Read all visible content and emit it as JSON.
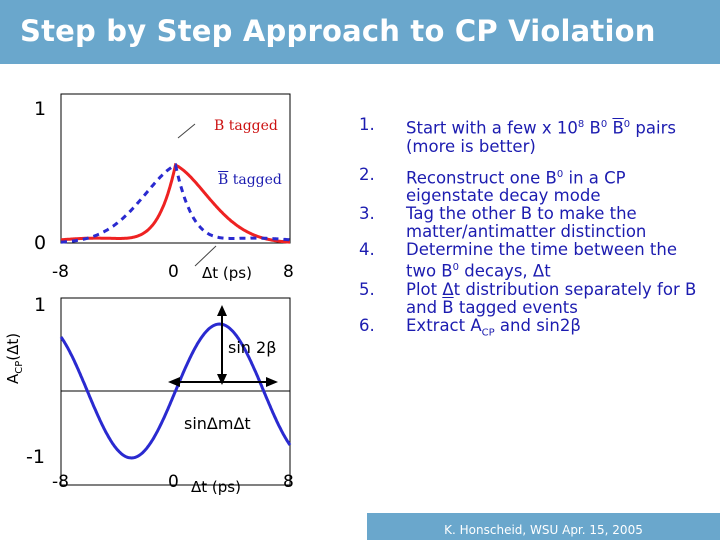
{
  "slide": {
    "title": "Step by Step Approach to CP Violation",
    "footer": "K. Honscheid, WSU Apr. 15, 2005"
  },
  "colors": {
    "title_bg": "#6aa7cc",
    "text_blue": "#1c1cb0",
    "curve_red": "#ee2222",
    "curve_blue": "#2a2ad0"
  },
  "top_plot": {
    "y_ticks": [
      "1",
      "0"
    ],
    "x_ticks": [
      "-8",
      "0",
      "8"
    ],
    "x_label": "Δt (ps)",
    "legend_b": "B tagged",
    "legend_bbar_letter": "B",
    "legend_bbar_rest": " tagged"
  },
  "bottom_plot": {
    "y_ticks": [
      "1",
      "-1"
    ],
    "x_ticks": [
      "-8",
      "0",
      "8"
    ],
    "x_label": "Δt (ps)",
    "y_label_main": "A",
    "y_label_sub": "CP",
    "y_label_arg": "(Δt)",
    "amplitude_label": "sin 2β",
    "curve_label": "sinΔmΔt"
  },
  "steps": [
    {
      "num": "1.",
      "a": "Start with a few x 10",
      "sup": "8",
      "b": "  B",
      "sup2": "0",
      "c": " ",
      "d": "B",
      "sup3": "0",
      "e": " pairs (more is better)"
    },
    {
      "num": "2.",
      "a": "Reconstruct one B",
      "sup": "0",
      "b": " in a CP eigenstate decay mode"
    },
    {
      "num": "3.",
      "text": "Tag the other B to make the matter/antimatter distinction"
    },
    {
      "num": "4.",
      "a": "Determine the time between the two B",
      "sup": "0",
      "b": " decays, Δt"
    },
    {
      "num": "5.",
      "a": "Plot Δt distribution separately for B and ",
      "bar": "B",
      "b": " tagged events"
    },
    {
      "num": "6.",
      "a": "Extract A",
      "sub": "CP",
      "b": " and sin2β"
    }
  ]
}
